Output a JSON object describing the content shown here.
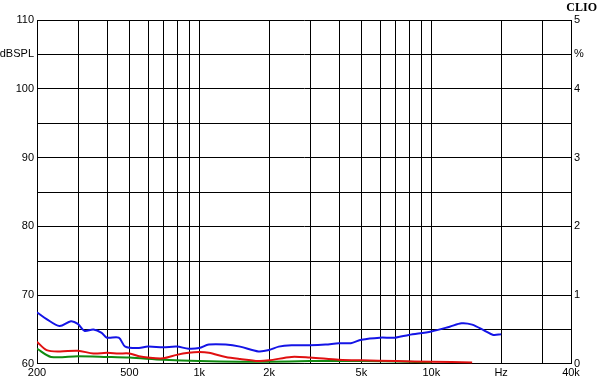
{
  "chart_data": {
    "type": "line",
    "title": "CLIO",
    "log": "x",
    "grid": true,
    "xlim": [
      200,
      40000
    ],
    "xticks": [
      200,
      500,
      {
        "value": 1000,
        "label": "1k"
      },
      {
        "value": 2000,
        "label": "2k"
      },
      {
        "value": 5000,
        "label": "5k"
      },
      {
        "value": 10000,
        "label": "10k"
      },
      {
        "value": 20000,
        "label": "Hz"
      },
      {
        "value": 40000,
        "label": "40k"
      }
    ],
    "ylim": [
      60,
      110
    ],
    "yticks": [
      60,
      70,
      80,
      90,
      100,
      {
        "value": 105,
        "label": "dBSPL"
      },
      110
    ],
    "y2lim": [
      0,
      5
    ],
    "y2ticks": [
      0,
      1,
      2,
      3,
      4,
      {
        "value": 4.5,
        "label": "%"
      },
      5
    ],
    "series": [
      {
        "color": "#1414e6",
        "x": [
          200,
          220,
          250,
          280,
          300,
          320,
          350,
          380,
          400,
          450,
          480,
          550,
          600,
          700,
          800,
          900,
          1000,
          1100,
          1300,
          1500,
          1800,
          2000,
          2200,
          2500,
          3000,
          3500,
          4000,
          4500,
          5000,
          6000,
          7000,
          8000,
          10000,
          12000,
          13500,
          15000,
          17000,
          18500,
          20000
        ],
        "values": [
          67.5,
          66.5,
          65.5,
          66.2,
          65.8,
          64.8,
          65.0,
          64.5,
          63.8,
          63.8,
          62.5,
          62.3,
          62.5,
          62.4,
          62.5,
          62.2,
          62.3,
          62.8,
          62.8,
          62.5,
          61.8,
          62.0,
          62.5,
          62.7,
          62.7,
          62.8,
          63.0,
          63.0,
          63.5,
          63.8,
          63.8,
          64.2,
          64.7,
          65.4,
          65.9,
          65.7,
          64.8,
          64.2,
          64.3
        ]
      },
      {
        "color": "#e01010",
        "x": [
          200,
          220,
          250,
          300,
          350,
          400,
          450,
          500,
          550,
          600,
          700,
          800,
          900,
          1000,
          1100,
          1300,
          1500,
          1800,
          2000,
          2500,
          3000,
          4000,
          5000,
          7000,
          10000,
          15000
        ],
        "values": [
          63.2,
          62.0,
          61.8,
          61.9,
          61.5,
          61.6,
          61.5,
          61.5,
          61.1,
          60.9,
          60.8,
          61.3,
          61.6,
          61.7,
          61.6,
          61.0,
          60.7,
          60.4,
          60.5,
          61.0,
          60.9,
          60.6,
          60.5,
          60.4,
          60.3,
          60.2
        ]
      },
      {
        "color": "#108a10",
        "x": [
          200,
          230,
          300,
          400,
          500,
          700,
          1000,
          1500,
          2000,
          3000,
          5000,
          8000,
          10000
        ],
        "values": [
          62.2,
          61.0,
          61.1,
          61.0,
          60.9,
          60.6,
          60.4,
          60.3,
          60.3,
          60.4,
          60.4,
          60.3,
          60.2
        ]
      }
    ]
  }
}
